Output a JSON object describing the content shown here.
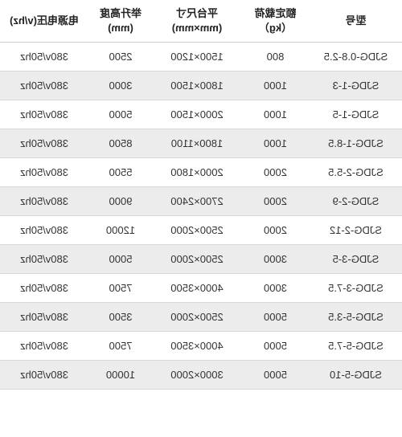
{
  "table": {
    "type": "table",
    "background_color": "#ffffff",
    "alt_row_color": "#ececec",
    "border_color": "#d8d8d8",
    "text_color": "#333333",
    "header_text_color": "#222222",
    "font_size_header": 13,
    "font_size_cell": 13,
    "columns": [
      {
        "line1": "型号",
        "line2": "",
        "width_pct": 23,
        "align": "center"
      },
      {
        "line1": "额定载荷",
        "line2": "（kg）",
        "width_pct": 17,
        "align": "center"
      },
      {
        "line1": "平台尺寸",
        "line2": "(mm×mm)",
        "width_pct": 22,
        "align": "center"
      },
      {
        "line1": "举升高度",
        "line2": "(mm)",
        "width_pct": 16,
        "align": "center"
      },
      {
        "line1": "电源电压(v/hz)",
        "line2": "",
        "width_pct": 22,
        "align": "center"
      }
    ],
    "rows": [
      [
        "SJDG-0.8-2.5",
        "800",
        "1500×1200",
        "2500",
        "380v/50hz"
      ],
      [
        "SJDG-1-3",
        "1000",
        "1800×1500",
        "3000",
        "380v/50hz"
      ],
      [
        "SJDG-1-5",
        "1000",
        "2000×1500",
        "5000",
        "380v/50hz"
      ],
      [
        "SJDG-1-8.5",
        "1000",
        "1800×1100",
        "8500",
        "380v/50hz"
      ],
      [
        "SJDG-2-5.5",
        "2000",
        "2000×1800",
        "5500",
        "380v/50hz"
      ],
      [
        "SJDG-2-9",
        "2000",
        "2700×2400",
        "9000",
        "380v/50hz"
      ],
      [
        "SJDG-2-12",
        "2000",
        "2500×2000",
        "12000",
        "380v/50hz"
      ],
      [
        "SJDG-3-5",
        "3000",
        "2500×2000",
        "5000",
        "380v/50hz"
      ],
      [
        "SJDG-3-7.5",
        "3000",
        "4000×3500",
        "7500",
        "380v/50hz"
      ],
      [
        "SJDG-5-3.5",
        "5000",
        "2500×2000",
        "3500",
        "380v/50hz"
      ],
      [
        "SJDG-5-7.5",
        "5000",
        "4000×3500",
        "7500",
        "380v/50hz"
      ],
      [
        "SJDG-5-10",
        "5000",
        "3000×2000",
        "10000",
        "380v/50hz"
      ]
    ]
  }
}
